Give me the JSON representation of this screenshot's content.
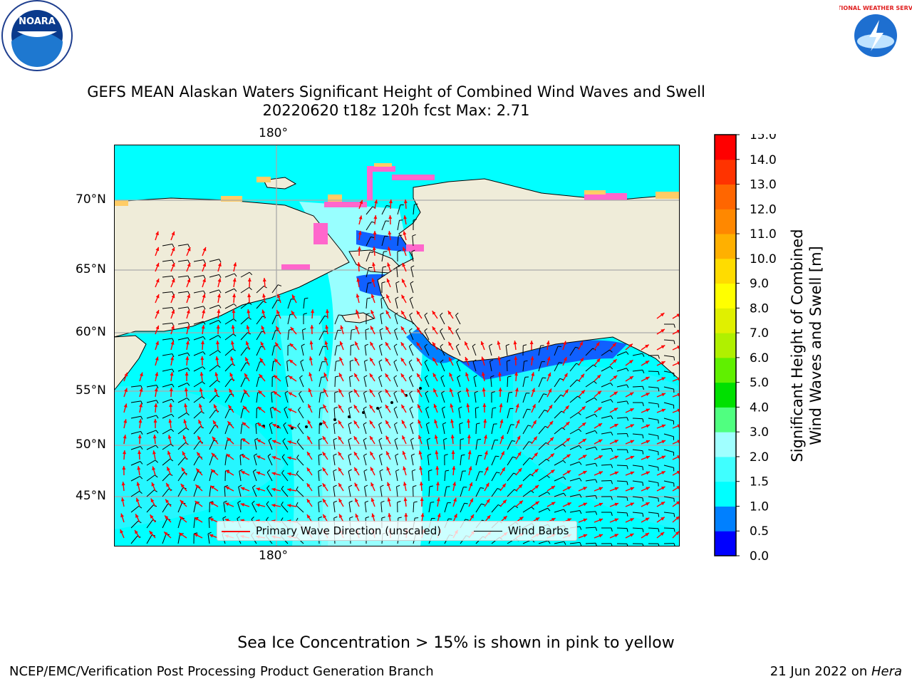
{
  "header": {
    "title_line1": "GEFS MEAN Alaskan Waters Significant Height of Combined Wind Waves and Swell",
    "title_line2": "20220620 t18z 120h fcst   Max: 2.71"
  },
  "logos": {
    "left": {
      "text": "NOARA",
      "name": "noaa-logo"
    },
    "right": {
      "text": "NATIONAL WEATHER SERVICE",
      "name": "nws-logo"
    }
  },
  "map": {
    "lon_label_top": "180°",
    "lon_label_bottom": "180°",
    "lat_labels": [
      "70°N",
      "65°N",
      "60°N",
      "55°N",
      "50°N",
      "45°N"
    ],
    "land_color": "#efecd9",
    "ocean_color": "#00ffff",
    "arrow_color": "#ff0000",
    "barb_color": "#000000"
  },
  "legend": {
    "wave_label": "Primary Wave Direction (unscaled)",
    "wind_label": "Wind Barbs"
  },
  "colorbar": {
    "title_line1": "Significant Height of Combined",
    "title_line2": "Wind Waves and Swell [m]",
    "ticks": [
      "15.0",
      "14.0",
      "13.0",
      "12.0",
      "11.0",
      "10.0",
      "9.0",
      "8.0",
      "7.0",
      "6.0",
      "5.0",
      "4.0",
      "3.0",
      "2.0",
      "1.5",
      "1.0",
      "0.5",
      "0.0"
    ],
    "colors": [
      "#0000ff",
      "#0080ff",
      "#00ffff",
      "#40ffff",
      "#a0ffff",
      "#50ff80",
      "#00e000",
      "#60f000",
      "#b0f000",
      "#e0f000",
      "#ffff00",
      "#ffdc00",
      "#ffb000",
      "#ff8800",
      "#ff6600",
      "#ff3300",
      "#ff0000"
    ]
  },
  "footer": {
    "note": "Sea Ice Concentration > 15% is shown in pink to yellow",
    "branch": "NCEP/EMC/Verification Post Processing Product Generation Branch",
    "date_prefix": "21 Jun 2022 on ",
    "machine": "Hera"
  }
}
